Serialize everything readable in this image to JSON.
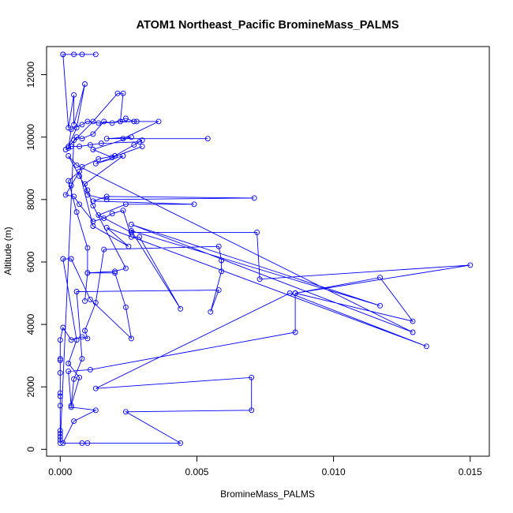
{
  "chart_data": {
    "type": "line",
    "title": "ATOM1 Northeast_Pacific BromineMass_PALMS",
    "xlabel": "BromineMass_PALMS",
    "ylabel": "Altitude (m)",
    "xlim": [
      -0.0005,
      0.0157
    ],
    "ylim": [
      -220,
      12900
    ],
    "xticks": [
      0.0,
      0.005,
      0.01,
      0.015
    ],
    "xtick_labels": [
      "0.000",
      "0.005",
      "0.010",
      "0.015"
    ],
    "yticks": [
      0,
      2000,
      4000,
      6000,
      8000,
      10000,
      12000
    ],
    "ytick_labels": [
      "0",
      "2000",
      "4000",
      "6000",
      "8000",
      "10000",
      "12000"
    ],
    "grid": false,
    "colors": {
      "series": "#0000ff",
      "axes": "#000000",
      "background": "#ffffff"
    },
    "marker": "open-circle",
    "series": [
      {
        "points": [
          [
            0.0001,
            12650
          ],
          [
            0.0005,
            12650
          ],
          [
            0.0013,
            12650
          ],
          [
            0.0008,
            12650
          ],
          [
            0.0001,
            12650
          ],
          [
            0.0003,
            10300
          ],
          [
            0.0005,
            11350
          ],
          [
            0.0005,
            10400
          ],
          [
            0.0009,
            11700
          ],
          [
            0.0006,
            10300
          ],
          [
            0.0003,
            9700
          ],
          [
            0.0012,
            10500
          ],
          [
            0.0021,
            11400
          ],
          [
            0.0023,
            11400
          ],
          [
            0.0022,
            10500
          ],
          [
            0.0028,
            10500
          ],
          [
            0.0036,
            10500
          ],
          [
            0.0023,
            9950
          ],
          [
            0.0054,
            9950
          ],
          [
            0.0017,
            9950
          ],
          [
            0.0026,
            10000
          ],
          [
            0.0012,
            9600
          ],
          [
            0.0019,
            9350
          ],
          [
            0.003,
            9700
          ],
          [
            0.0013,
            9150
          ],
          [
            0.0023,
            9400
          ],
          [
            0.0009,
            8500
          ],
          [
            0.001,
            8150
          ],
          [
            0.0017,
            8000
          ],
          [
            0.0071,
            8050
          ],
          [
            0.0017,
            8100
          ],
          [
            0.0012,
            7950
          ],
          [
            0.0049,
            7850
          ],
          [
            0.0024,
            7850
          ],
          [
            0.0014,
            7500
          ],
          [
            0.0026,
            6950
          ],
          [
            0.0072,
            6950
          ],
          [
            0.0073,
            5450
          ],
          [
            0.015,
            5900
          ],
          [
            0.0086,
            5000
          ],
          [
            0.0129,
            4100
          ],
          [
            0.0117,
            5500
          ],
          [
            0.0086,
            5000
          ],
          [
            0.0086,
            3750
          ],
          [
            0.0011,
            2550
          ],
          [
            0.0003,
            2500
          ],
          [
            0.0004,
            1350
          ],
          [
            0.0013,
            1250
          ],
          [
            0.0005,
            900
          ],
          [
            0.0001,
            200
          ],
          [
            0.0008,
            200
          ],
          [
            0.001,
            200
          ],
          [
            0.0044,
            200
          ],
          [
            0.0024,
            1200
          ],
          [
            0.007,
            1250
          ],
          [
            0.007,
            2300
          ],
          [
            0.0013,
            1950
          ],
          [
            0.0084,
            5000
          ],
          [
            0.0134,
            3300
          ],
          [
            0.0017,
            7100
          ],
          [
            0.0025,
            6500
          ],
          [
            0.0012,
            7150
          ],
          [
            0.0007,
            8900
          ],
          [
            0.0003,
            8600
          ],
          [
            0.0006,
            7600
          ],
          [
            0.001,
            6450
          ],
          [
            0.001,
            5650
          ],
          [
            0.002,
            5650
          ],
          [
            0.0024,
            4550
          ],
          [
            0.0026,
            3550
          ],
          [
            0.0011,
            4800
          ],
          [
            0.0004,
            6100
          ],
          [
            0.0001,
            6100
          ],
          [
            0.0006,
            3500
          ],
          [
            0.0003,
            2750
          ],
          [
            0.0007,
            2300
          ],
          [
            0.0004,
            1400
          ],
          [
            0.0005,
            2250
          ],
          [
            0.0008,
            2900
          ],
          [
            0.0006,
            5050
          ],
          [
            0.0058,
            5100
          ],
          [
            0.0055,
            4400
          ],
          [
            0.0059,
            5700
          ],
          [
            0.0059,
            6050
          ],
          [
            0.0058,
            6500
          ],
          [
            0.0016,
            6400
          ],
          [
            0.0013,
            4700
          ],
          [
            0.0009,
            3800
          ],
          [
            0.001,
            3550
          ],
          [
            0.0008,
            3600
          ],
          [
            0.0004,
            3500
          ],
          [
            0.0001,
            3900
          ],
          [
            0.0,
            3500
          ],
          [
            0.0,
            2900
          ],
          [
            0.0,
            2850
          ],
          [
            0.0,
            2450
          ],
          [
            0.0,
            1800
          ],
          [
            0.0,
            1700
          ],
          [
            0.0,
            1400
          ],
          [
            0.0,
            600
          ],
          [
            0.0,
            500
          ],
          [
            0.0,
            400
          ],
          [
            0.0,
            300
          ],
          [
            0.0,
            200
          ],
          [
            0.0005,
            9900
          ],
          [
            0.0006,
            10000
          ],
          [
            0.0008,
            9950
          ],
          [
            0.0012,
            10100
          ],
          [
            0.0016,
            10500
          ],
          [
            0.0019,
            10450
          ],
          [
            0.0024,
            10600
          ],
          [
            0.0027,
            10500
          ],
          [
            0.0014,
            10450
          ],
          [
            0.001,
            10500
          ],
          [
            0.0008,
            10400
          ],
          [
            0.0004,
            10250
          ],
          [
            0.0003,
            9650
          ],
          [
            0.0002,
            9600
          ],
          [
            0.0004,
            9700
          ],
          [
            0.0007,
            9700
          ],
          [
            0.0011,
            9750
          ],
          [
            0.0015,
            9800
          ],
          [
            0.0029,
            9850
          ],
          [
            0.003,
            9900
          ],
          [
            0.0027,
            9750
          ],
          [
            0.002,
            9400
          ],
          [
            0.0014,
            9300
          ],
          [
            0.0008,
            9050
          ],
          [
            0.0004,
            8450
          ],
          [
            0.0002,
            8150
          ],
          [
            0.0005,
            8100
          ],
          [
            0.0007,
            7850
          ],
          [
            0.0012,
            7300
          ],
          [
            0.0016,
            7400
          ],
          [
            0.0019,
            7550
          ],
          [
            0.0023,
            7650
          ],
          [
            0.0026,
            6800
          ],
          [
            0.0029,
            6800
          ],
          [
            0.0044,
            4500
          ],
          [
            0.0026,
            7000
          ],
          [
            0.0117,
            4600
          ],
          [
            0.0026,
            7200
          ],
          [
            0.0129,
            3750
          ],
          [
            0.0006,
            9100
          ],
          [
            0.0003,
            9400
          ],
          [
            0.0007,
            8750
          ],
          [
            0.001,
            8300
          ],
          [
            0.0012,
            7800
          ],
          [
            0.0024,
            5800
          ],
          [
            0.002,
            5700
          ],
          [
            0.001,
            5650
          ],
          [
            0.0009,
            4750
          ]
        ]
      }
    ]
  }
}
